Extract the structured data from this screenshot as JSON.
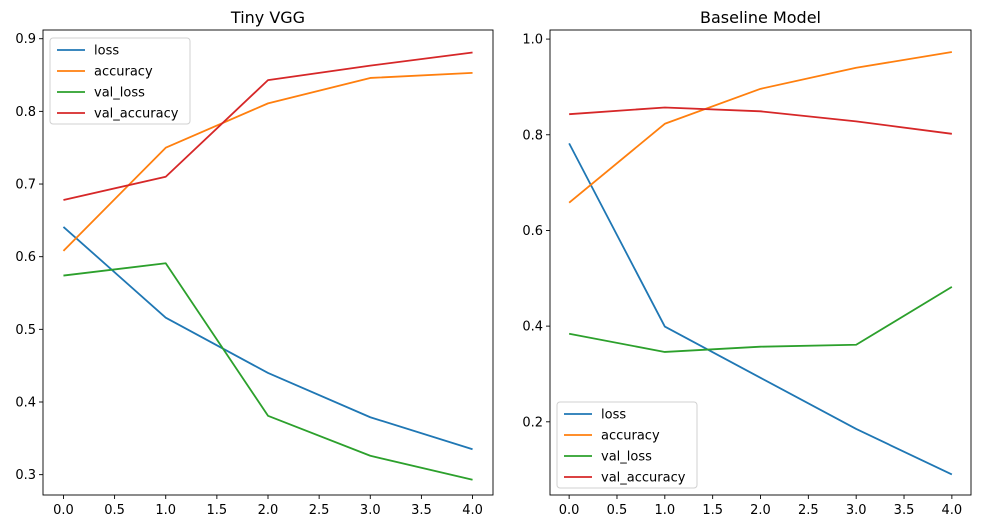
{
  "chart_data": [
    {
      "type": "line",
      "title": "Tiny VGG",
      "x": [
        0,
        1,
        2,
        3,
        4
      ],
      "xlim": [
        -0.2,
        4.2
      ],
      "ylim": [
        0.272,
        0.912
      ],
      "xticks": [
        0,
        0.5,
        1,
        1.5,
        2,
        2.5,
        3,
        3.5,
        4
      ],
      "xtick_labels": [
        "0.0",
        "0.5",
        "1.0",
        "1.5",
        "2.0",
        "2.5",
        "3.0",
        "3.5",
        "4.0"
      ],
      "yticks": [
        0.3,
        0.4,
        0.5,
        0.6,
        0.7,
        0.8,
        0.9
      ],
      "ytick_labels": [
        "0.3",
        "0.4",
        "0.5",
        "0.6",
        "0.7",
        "0.8",
        "0.9"
      ],
      "grid": false,
      "legend_position": "top-left",
      "series": [
        {
          "name": "loss",
          "color": "#1f77b4",
          "values": [
            0.641,
            0.516,
            0.44,
            0.379,
            0.335
          ]
        },
        {
          "name": "accuracy",
          "color": "#ff7f0e",
          "values": [
            0.608,
            0.75,
            0.811,
            0.846,
            0.853
          ]
        },
        {
          "name": "val_loss",
          "color": "#2ca02c",
          "values": [
            0.574,
            0.591,
            0.381,
            0.326,
            0.293
          ]
        },
        {
          "name": "val_accuracy",
          "color": "#d62728",
          "values": [
            0.678,
            0.71,
            0.843,
            0.863,
            0.881
          ]
        }
      ]
    },
    {
      "type": "line",
      "title": "Baseline Model",
      "x": [
        0,
        1,
        2,
        3,
        4
      ],
      "xlim": [
        -0.2,
        4.2
      ],
      "ylim": [
        0.047,
        1.019
      ],
      "xticks": [
        0,
        0.5,
        1,
        1.5,
        2,
        2.5,
        3,
        3.5,
        4
      ],
      "xtick_labels": [
        "0.0",
        "0.5",
        "1.0",
        "1.5",
        "2.0",
        "2.5",
        "3.0",
        "3.5",
        "4.0"
      ],
      "yticks": [
        0.2,
        0.4,
        0.6,
        0.8,
        1.0
      ],
      "ytick_labels": [
        "0.2",
        "0.4",
        "0.6",
        "0.8",
        "1.0"
      ],
      "grid": false,
      "legend_position": "bottom-left",
      "series": [
        {
          "name": "loss",
          "color": "#1f77b4",
          "values": [
            0.782,
            0.399,
            0.292,
            0.185,
            0.09
          ]
        },
        {
          "name": "accuracy",
          "color": "#ff7f0e",
          "values": [
            0.658,
            0.823,
            0.896,
            0.94,
            0.973
          ]
        },
        {
          "name": "val_loss",
          "color": "#2ca02c",
          "values": [
            0.384,
            0.346,
            0.357,
            0.361,
            0.482
          ]
        },
        {
          "name": "val_accuracy",
          "color": "#d62728",
          "values": [
            0.843,
            0.857,
            0.849,
            0.828,
            0.802
          ]
        }
      ]
    }
  ]
}
